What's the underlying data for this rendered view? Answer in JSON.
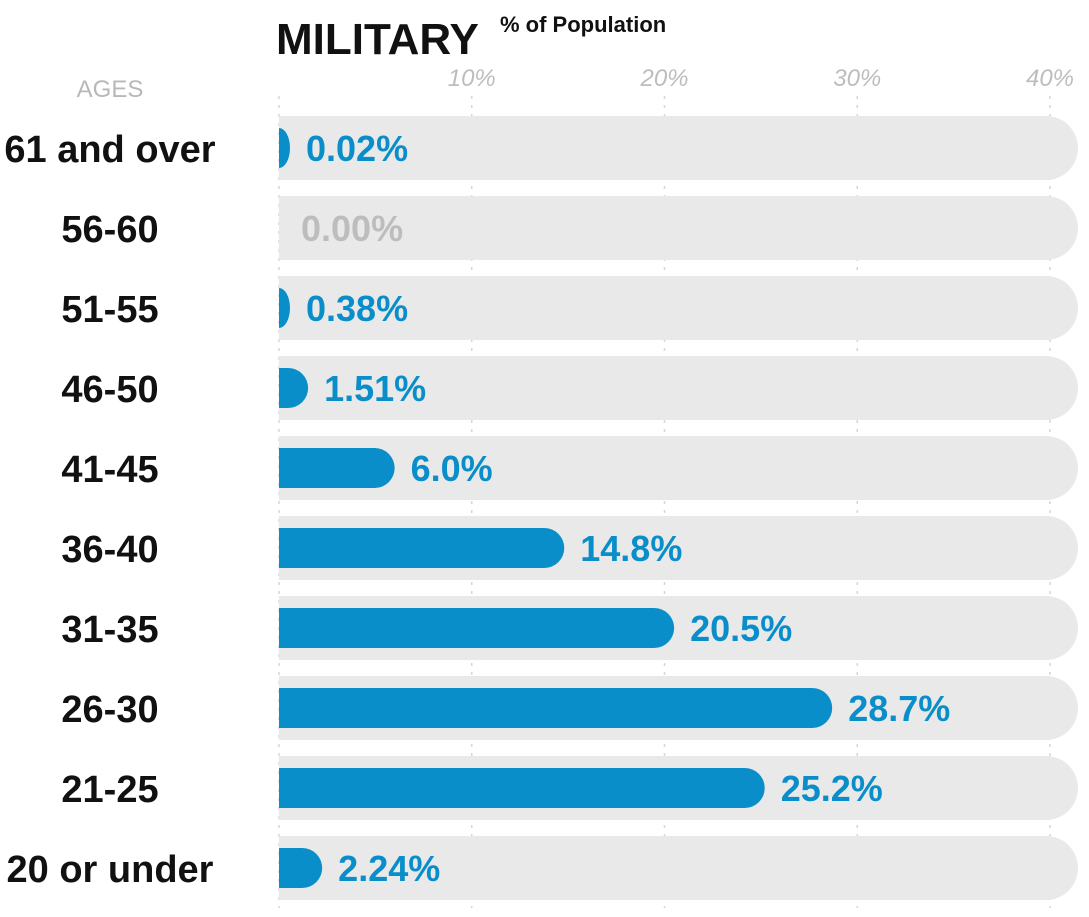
{
  "chart_data": {
    "type": "bar",
    "orientation": "horizontal",
    "title": "MILITARY",
    "subtitle": "% of Population",
    "category_axis_label": "AGES",
    "categories": [
      "61 and over",
      "56-60",
      "51-55",
      "46-50",
      "41-45",
      "36-40",
      "31-35",
      "26-30",
      "21-25",
      "20 or under"
    ],
    "values": [
      0.02,
      0.0,
      0.38,
      1.51,
      6.0,
      14.8,
      20.5,
      28.7,
      25.2,
      2.24
    ],
    "value_labels": [
      "0.02%",
      "0.00%",
      "0.38%",
      "1.51%",
      "6.0%",
      "14.8%",
      "20.5%",
      "28.7%",
      "25.2%",
      "2.24%"
    ],
    "x_ticks": [
      10,
      20,
      30,
      40
    ],
    "x_tick_labels": [
      "10%",
      "20%",
      "30%",
      "40%"
    ],
    "xlim": [
      0,
      40
    ],
    "grid": true,
    "colors": {
      "bar": "#0a8ec9",
      "track": "#e9e9e9",
      "value_label": "#0a8ec9",
      "zero_label": "#bdbdbd",
      "grid": "#d6d6d6"
    }
  }
}
